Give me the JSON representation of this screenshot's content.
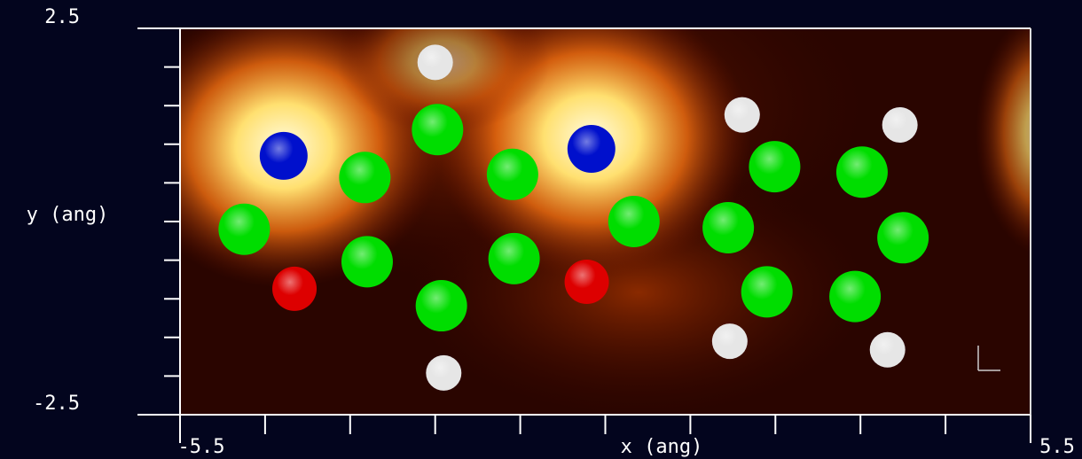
{
  "chart_data": {
    "type": "scatter",
    "xlabel": "x (ang)",
    "ylabel": "y (ang)",
    "xlim": [
      -5.5,
      5.5
    ],
    "ylim": [
      -2.5,
      2.5
    ],
    "xticks": [
      -5.5,
      5.5
    ],
    "yticks": [
      -2.5,
      2.5
    ],
    "xminor_ticks": [
      -4.4,
      -3.3,
      -2.2,
      -1.1,
      0,
      1.1,
      2.2,
      3.3,
      4.4
    ],
    "yminor_ticks": [
      -2,
      -1.5,
      -1,
      -0.5,
      0,
      0.5,
      1,
      1.5,
      2
    ],
    "series": [
      {
        "color": "#e6e6e6",
        "x": [
          -2.2,
          1.77,
          3.81,
          -2.09,
          1.61,
          3.65
        ],
        "values": [
          2.06,
          1.38,
          1.25,
          -1.96,
          -1.55,
          -1.66
        ]
      },
      {
        "color": "#00dd00",
        "x": [
          -4.67,
          -3.11,
          -2.17,
          -3.08,
          -2.12,
          -1.2,
          -1.18,
          0.37,
          1.59,
          2.19,
          3.32,
          3.85,
          2.09,
          3.23
        ],
        "values": [
          -0.1,
          0.57,
          1.19,
          -0.52,
          -1.09,
          0.61,
          -0.48,
          0.0,
          -0.08,
          0.71,
          0.64,
          -0.21,
          -0.91,
          -0.97
        ]
      },
      {
        "color": "#0010cc",
        "x": [
          -4.16,
          -0.18
        ],
        "values": [
          0.85,
          0.94
        ]
      },
      {
        "color": "#dd0000",
        "x": [
          -4.02,
          -0.24
        ],
        "values": [
          -0.87,
          -0.78
        ]
      }
    ]
  }
}
